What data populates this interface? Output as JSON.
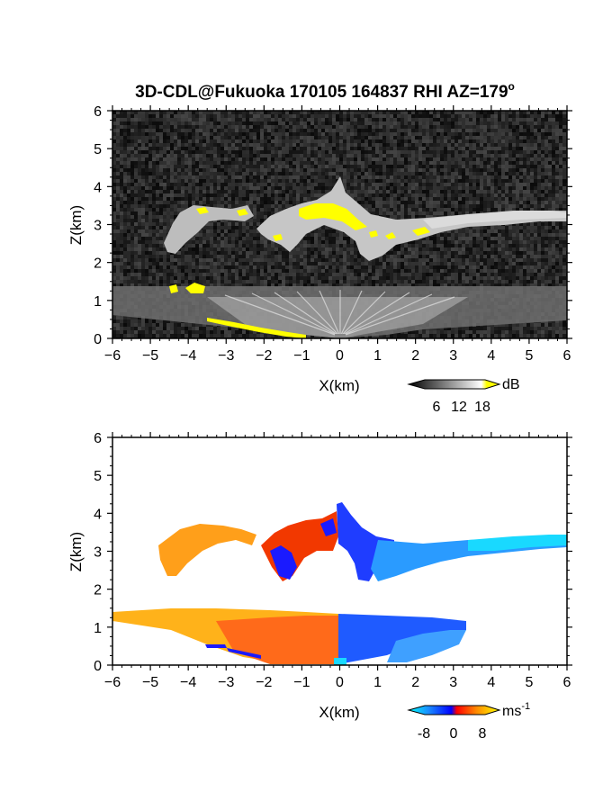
{
  "chart_data": [
    {
      "type": "heatmap",
      "panel": "reflectivity",
      "title": "3D-CDL@Fukuoka 170105 164837 RHI AZ=179",
      "title_superscript": "o",
      "xlabel": "X(km)",
      "ylabel": "Z(km)",
      "xlim": [
        -6,
        6
      ],
      "ylim": [
        0,
        6
      ],
      "xticks": [
        "-6",
        "-5",
        "-4",
        "-3",
        "-2",
        "-1",
        "0",
        "1",
        "2",
        "3",
        "4",
        "5",
        "6"
      ],
      "yticks": [
        "0",
        "1",
        "2",
        "3",
        "4",
        "5",
        "6"
      ],
      "colorbar": {
        "unit": "dB",
        "ticks": [
          "6",
          "12",
          "18"
        ],
        "range": [
          0,
          21
        ],
        "colors": [
          "#000000",
          "#ffffff",
          "#ffff00"
        ]
      },
      "background": "noise",
      "features": [
        {
          "name": "upper cloud layer",
          "x_range_km": [
            -4.5,
            6.0
          ],
          "z_range_km": [
            2.2,
            4.4
          ],
          "peak_x_km": 0.1,
          "peak_z_km": 4.2
        },
        {
          "name": "near-surface layer",
          "x_range_km": [
            -6.0,
            6.0
          ],
          "z_range_km": [
            0.0,
            1.35
          ]
        },
        {
          "name": "high-reflectivity edge",
          "x_range_km": [
            -3.5,
            0.0
          ],
          "z_range_km": [
            0.0,
            0.5
          ],
          "value_dB": 18
        }
      ]
    },
    {
      "type": "heatmap",
      "panel": "doppler velocity",
      "xlabel": "X(km)",
      "ylabel": "Z(km)",
      "xlim": [
        -6,
        6
      ],
      "ylim": [
        0,
        6
      ],
      "xticks": [
        "-6",
        "-5",
        "-4",
        "-3",
        "-2",
        "-1",
        "0",
        "1",
        "2",
        "3",
        "4",
        "5",
        "6"
      ],
      "yticks": [
        "0",
        "1",
        "2",
        "3",
        "4",
        "5",
        "6"
      ],
      "colorbar": {
        "unit": "ms",
        "unit_exponent": "-1",
        "ticks": [
          "-8",
          "0",
          "8"
        ],
        "range": [
          -10,
          10
        ],
        "colors": [
          "#00ffff",
          "#0000ff",
          "#ff0000",
          "#ffff00"
        ]
      },
      "features": [
        {
          "name": "upper cloud, west part",
          "x_range_km": [
            -4.6,
            -1.5
          ],
          "z_range_km": [
            2.4,
            3.6
          ],
          "velocity_ms": 5
        },
        {
          "name": "upper cloud, center",
          "x_range_km": [
            -1.5,
            0.1
          ],
          "z_range_km": [
            2.2,
            4.1
          ],
          "velocity_ms": 1
        },
        {
          "name": "upper cloud, east part",
          "x_range_km": [
            0.1,
            6.0
          ],
          "z_range_km": [
            2.0,
            4.3
          ],
          "velocity_ms": -6
        },
        {
          "name": "lower layer, west part",
          "x_range_km": [
            -6.0,
            0.0
          ],
          "z_range_km": [
            0.0,
            1.4
          ],
          "velocity_ms": 4
        },
        {
          "name": "lower layer, east part",
          "x_range_km": [
            0.0,
            3.4
          ],
          "z_range_km": [
            0.0,
            1.3
          ],
          "velocity_ms": -2
        }
      ]
    }
  ]
}
